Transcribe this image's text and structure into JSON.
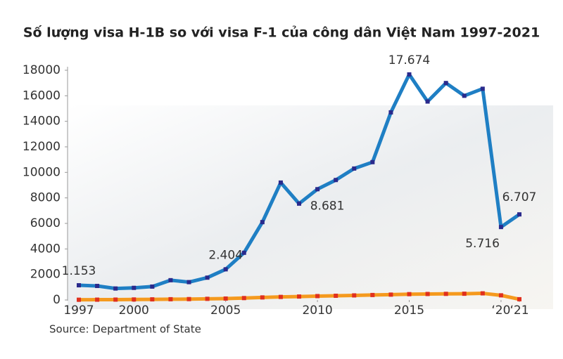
{
  "chart_data": {
    "type": "line",
    "title": "Số lượng visa H-1B so với visa F-1 của công dân Việt Nam 1997-2021",
    "source": "Source: Department of State",
    "x": [
      1997,
      1998,
      1999,
      2000,
      2001,
      2002,
      2003,
      2004,
      2005,
      2006,
      2007,
      2008,
      2009,
      2010,
      2011,
      2012,
      2013,
      2014,
      2015,
      2016,
      2017,
      2018,
      2019,
      2020,
      2021
    ],
    "series": [
      {
        "color": "#1f7fc4",
        "marker_color": "#2a2a8c",
        "values": [
          1153,
          1100,
          900,
          950,
          1050,
          1550,
          1400,
          1750,
          2404,
          3700,
          6100,
          9200,
          7550,
          8681,
          9400,
          10300,
          10800,
          14700,
          17674,
          15550,
          17000,
          16000,
          16550,
          5716,
          6707
        ],
        "value_labels": [
          "1.153",
          null,
          null,
          null,
          null,
          null,
          null,
          null,
          "2.404",
          null,
          null,
          null,
          null,
          "8.681",
          null,
          null,
          null,
          null,
          "17.674",
          null,
          null,
          null,
          null,
          "5.716",
          "6.707"
        ]
      },
      {
        "color": "#f59a1e",
        "marker_color": "#e0301e",
        "values": [
          20,
          25,
          30,
          40,
          50,
          60,
          70,
          90,
          112,
          150,
          200,
          240,
          270,
          305,
          330,
          360,
          390,
          420,
          457,
          470,
          480,
          490,
          520,
          365,
          60
        ],
        "value_labels": [
          null,
          null,
          null,
          null,
          null,
          null,
          null,
          null,
          null,
          null,
          null,
          null,
          null,
          null,
          null,
          null,
          null,
          null,
          null,
          null,
          null,
          null,
          null,
          null,
          null
        ]
      }
    ],
    "xlim": [
      1997,
      2021
    ],
    "xticks": [
      1997,
      2000,
      2005,
      2010,
      2015,
      {
        "value": 2020,
        "label": "‘20"
      },
      {
        "value": 2021,
        "label": "‘21"
      }
    ],
    "ylim": [
      0,
      18000
    ],
    "yticks": [
      0,
      2000,
      4000,
      6000,
      8000,
      10000,
      12000,
      14000,
      16000,
      18000
    ],
    "grid": false
  }
}
